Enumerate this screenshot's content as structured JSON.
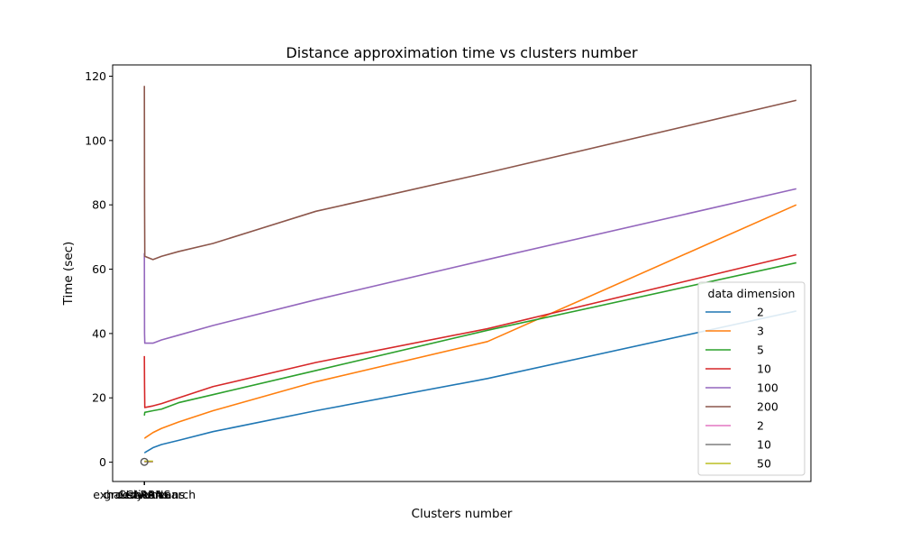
{
  "chart_data": {
    "type": "line",
    "title": "Distance approximation time vs clusters number",
    "xlabel": "Clusters number",
    "ylabel": "Time (sec)",
    "xlim": [
      -3.7,
      77.7
    ],
    "ylim": [
      -6,
      123.5
    ],
    "x_ticks": [
      "exhaustive search",
      "greedy-means",
      "k-means",
      "CLARANS",
      "CLARA"
    ],
    "y_ticks": [
      0,
      20,
      40,
      60,
      80,
      100,
      120
    ],
    "grid": false,
    "legend": {
      "title": "data dimension",
      "position": "right"
    },
    "series": [
      {
        "name": "2",
        "color": "#1f77b4",
        "x": [
          0,
          0.05,
          1,
          2,
          4,
          8,
          20,
          40,
          76
        ],
        "y": [
          3,
          3,
          4.5,
          5.5,
          6.8,
          9.5,
          16,
          26,
          47
        ]
      },
      {
        "name": "3",
        "color": "#ff7f0e",
        "x": [
          0,
          0.05,
          1,
          2,
          4,
          8,
          20,
          40,
          76
        ],
        "y": [
          7.5,
          7.5,
          9.2,
          10.5,
          12.5,
          16,
          25,
          37.5,
          80
        ]
      },
      {
        "name": "5",
        "color": "#2ca02c",
        "x": [
          0,
          0.05,
          1,
          2,
          4,
          8,
          20,
          40,
          76
        ],
        "y": [
          14.5,
          15.5,
          16,
          16.5,
          18.5,
          21,
          28.5,
          41,
          62
        ]
      },
      {
        "name": "10",
        "color": "#d62728",
        "x": [
          0,
          0.02,
          0.05,
          1,
          2,
          4,
          8,
          20,
          40,
          76
        ],
        "y": [
          33,
          24,
          17,
          17.5,
          18.2,
          20,
          23.5,
          31,
          41.5,
          64.5
        ]
      },
      {
        "name": "100",
        "color": "#9467bd",
        "x": [
          0,
          0.02,
          0.05,
          1,
          2,
          4,
          8,
          20,
          40,
          76
        ],
        "y": [
          65,
          40,
          37,
          37,
          38,
          39.5,
          42.5,
          50.5,
          63,
          85
        ]
      },
      {
        "name": "200",
        "color": "#8c564b",
        "x": [
          0,
          0.02,
          0.05,
          1,
          2,
          4,
          8,
          20,
          40,
          76
        ],
        "y": [
          117,
          82,
          64,
          63,
          64,
          65.5,
          68,
          78,
          90,
          112.5
        ]
      },
      {
        "name": "2",
        "color": "#e377c2",
        "x": [
          0,
          0.2,
          0.4,
          0.6,
          1
        ],
        "y": [
          0.1,
          0.1,
          0.1,
          0.1,
          0.1
        ]
      },
      {
        "name": "10",
        "color": "#7f7f7f",
        "x": [
          0,
          0.2,
          0.4,
          0.6,
          1
        ],
        "y": [
          0.2,
          0.2,
          0.2,
          0.2,
          0.2
        ]
      },
      {
        "name": "50",
        "color": "#bcbd22",
        "x": [
          0,
          0.2,
          0.4,
          0.6,
          1
        ],
        "y": [
          0.3,
          0.3,
          0.3,
          0.3,
          0.3
        ]
      }
    ],
    "markers_series": [
      {
        "name": "2",
        "color": "#555555",
        "x": [
          0
        ],
        "y": [
          0.1
        ]
      }
    ]
  }
}
